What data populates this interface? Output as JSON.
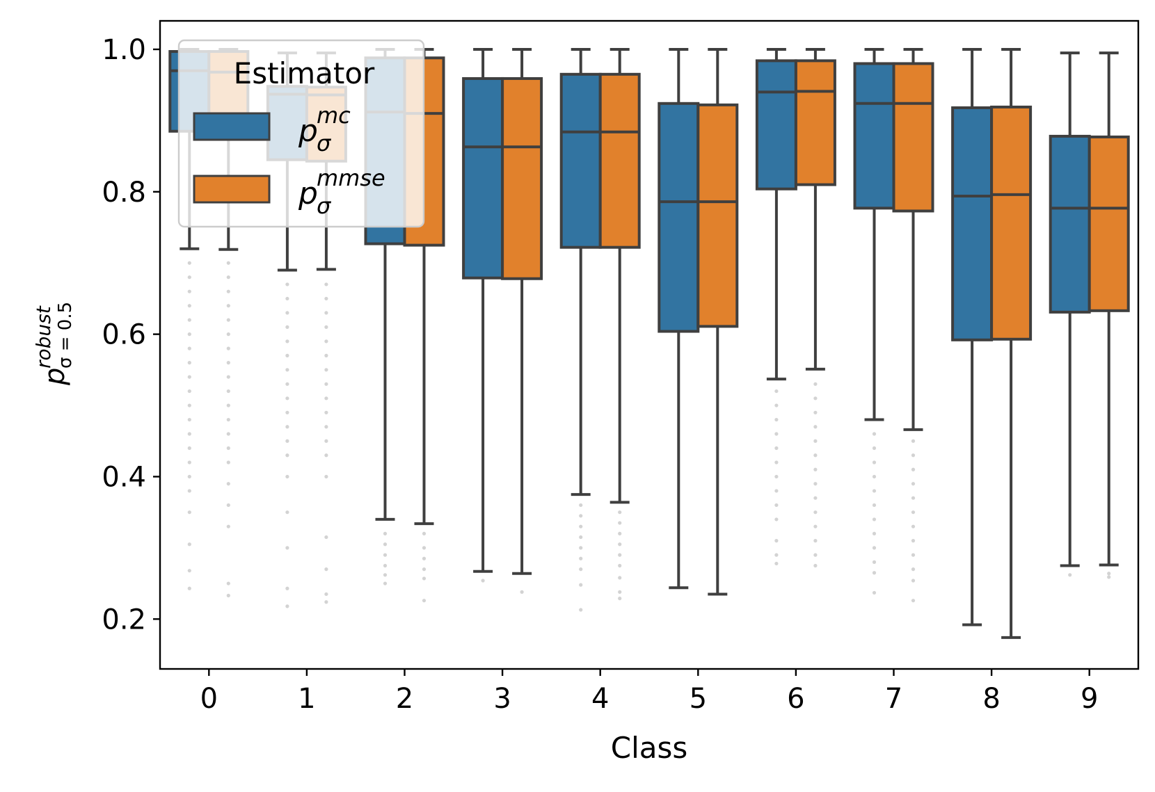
{
  "chart_data": {
    "type": "box",
    "title": "",
    "xlabel": "Class",
    "ylabel": {
      "base": "p",
      "superscript": "robust",
      "subscript": "σ = 0.5"
    },
    "ylim": [
      0.13,
      1.04
    ],
    "yticks": [
      0.2,
      0.4,
      0.6,
      0.8,
      1.0
    ],
    "ytick_labels": [
      "0.2",
      "0.4",
      "0.6",
      "0.8",
      "1.0"
    ],
    "categories": [
      "0",
      "1",
      "2",
      "3",
      "4",
      "5",
      "6",
      "7",
      "8",
      "9"
    ],
    "legend": {
      "title": "Estimator",
      "placement": "top-left",
      "entries": [
        {
          "base": "p",
          "sup": "mc",
          "sub": "σ"
        },
        {
          "base": "p",
          "sup": "mmse",
          "sub": "σ"
        }
      ]
    },
    "series": [
      {
        "name": "p_σ^mc",
        "color": "#3274a1",
        "boxes": [
          {
            "q1": 0.885,
            "median": 0.97,
            "q3": 0.997,
            "whisker_low": 0.72,
            "whisker_high": 1.0,
            "outliers": [
              0.7,
              0.68,
              0.66,
              0.64,
              0.62,
              0.6,
              0.58,
              0.56,
              0.54,
              0.52,
              0.5,
              0.48,
              0.46,
              0.44,
              0.42,
              0.4,
              0.38,
              0.35,
              0.305,
              0.268,
              0.243
            ]
          },
          {
            "q1": 0.845,
            "median": 0.937,
            "q3": 0.948,
            "whisker_low": 0.69,
            "whisker_high": 0.995,
            "outliers": [
              0.67,
              0.65,
              0.63,
              0.61,
              0.59,
              0.57,
              0.55,
              0.53,
              0.51,
              0.49,
              0.47,
              0.45,
              0.43,
              0.4,
              0.35,
              0.3,
              0.243,
              0.218
            ]
          },
          {
            "q1": 0.727,
            "median": 0.912,
            "q3": 0.988,
            "whisker_low": 0.34,
            "whisker_high": 1.0,
            "outliers": [
              0.32,
              0.305,
              0.29,
              0.275,
              0.262,
              0.25
            ]
          },
          {
            "q1": 0.679,
            "median": 0.863,
            "q3": 0.959,
            "whisker_low": 0.267,
            "whisker_high": 1.0,
            "outliers": [
              0.254
            ]
          },
          {
            "q1": 0.722,
            "median": 0.884,
            "q3": 0.965,
            "whisker_low": 0.375,
            "whisker_high": 1.0,
            "outliers": [
              0.36,
              0.345,
              0.33,
              0.315,
              0.3,
              0.285,
              0.27,
              0.248,
              0.213
            ]
          },
          {
            "q1": 0.604,
            "median": 0.786,
            "q3": 0.924,
            "whisker_low": 0.244,
            "whisker_high": 1.0,
            "outliers": []
          },
          {
            "q1": 0.804,
            "median": 0.94,
            "q3": 0.984,
            "whisker_low": 0.537,
            "whisker_high": 1.0,
            "outliers": [
              0.52,
              0.5,
              0.48,
              0.46,
              0.44,
              0.42,
              0.4,
              0.38,
              0.36,
              0.34,
              0.31,
              0.29,
              0.278
            ]
          },
          {
            "q1": 0.777,
            "median": 0.924,
            "q3": 0.98,
            "whisker_low": 0.48,
            "whisker_high": 1.0,
            "outliers": [
              0.46,
              0.44,
              0.42,
              0.4,
              0.38,
              0.36,
              0.34,
              0.32,
              0.3,
              0.28,
              0.265,
              0.237
            ]
          },
          {
            "q1": 0.592,
            "median": 0.794,
            "q3": 0.918,
            "whisker_low": 0.192,
            "whisker_high": 1.0,
            "outliers": []
          },
          {
            "q1": 0.631,
            "median": 0.777,
            "q3": 0.878,
            "whisker_low": 0.275,
            "whisker_high": 0.995,
            "outliers": [
              0.262
            ]
          }
        ]
      },
      {
        "name": "p_σ^mmse",
        "color": "#e1812c",
        "boxes": [
          {
            "q1": 0.885,
            "median": 0.968,
            "q3": 0.997,
            "whisker_low": 0.719,
            "whisker_high": 1.0,
            "outliers": [
              0.7,
              0.68,
              0.66,
              0.64,
              0.62,
              0.6,
              0.58,
              0.56,
              0.54,
              0.52,
              0.5,
              0.48,
              0.46,
              0.44,
              0.42,
              0.39,
              0.36,
              0.33,
              0.25,
              0.233
            ]
          },
          {
            "q1": 0.843,
            "median": 0.936,
            "q3": 0.947,
            "whisker_low": 0.691,
            "whisker_high": 0.995,
            "outliers": [
              0.67,
              0.65,
              0.63,
              0.61,
              0.59,
              0.57,
              0.55,
              0.53,
              0.51,
              0.49,
              0.47,
              0.45,
              0.43,
              0.4,
              0.315,
              0.27,
              0.235,
              0.224
            ]
          },
          {
            "q1": 0.725,
            "median": 0.91,
            "q3": 0.988,
            "whisker_low": 0.334,
            "whisker_high": 1.0,
            "outliers": [
              0.32,
              0.3,
              0.285,
              0.27,
              0.257,
              0.226
            ]
          },
          {
            "q1": 0.678,
            "median": 0.863,
            "q3": 0.959,
            "whisker_low": 0.264,
            "whisker_high": 1.0,
            "outliers": [
              0.238
            ]
          },
          {
            "q1": 0.722,
            "median": 0.884,
            "q3": 0.965,
            "whisker_low": 0.364,
            "whisker_high": 1.0,
            "outliers": [
              0.35,
              0.335,
              0.32,
              0.305,
              0.29,
              0.275,
              0.258,
              0.238,
              0.229
            ]
          },
          {
            "q1": 0.611,
            "median": 0.786,
            "q3": 0.922,
            "whisker_low": 0.235,
            "whisker_high": 1.0,
            "outliers": []
          },
          {
            "q1": 0.81,
            "median": 0.941,
            "q3": 0.984,
            "whisker_low": 0.551,
            "whisker_high": 1.0,
            "outliers": [
              0.53,
              0.51,
              0.49,
              0.47,
              0.45,
              0.43,
              0.41,
              0.39,
              0.37,
              0.35,
              0.33,
              0.31,
              0.29,
              0.275
            ]
          },
          {
            "q1": 0.773,
            "median": 0.924,
            "q3": 0.98,
            "whisker_low": 0.466,
            "whisker_high": 1.0,
            "outliers": [
              0.45,
              0.43,
              0.41,
              0.39,
              0.37,
              0.35,
              0.33,
              0.31,
              0.29,
              0.27,
              0.254,
              0.226
            ]
          },
          {
            "q1": 0.593,
            "median": 0.796,
            "q3": 0.919,
            "whisker_low": 0.174,
            "whisker_high": 1.0,
            "outliers": []
          },
          {
            "q1": 0.633,
            "median": 0.777,
            "q3": 0.877,
            "whisker_low": 0.276,
            "whisker_high": 0.995,
            "outliers": [
              0.264,
              0.259
            ]
          }
        ]
      }
    ],
    "outlier_color": "#d3d3d3",
    "line_color": "#3f3f3f"
  }
}
